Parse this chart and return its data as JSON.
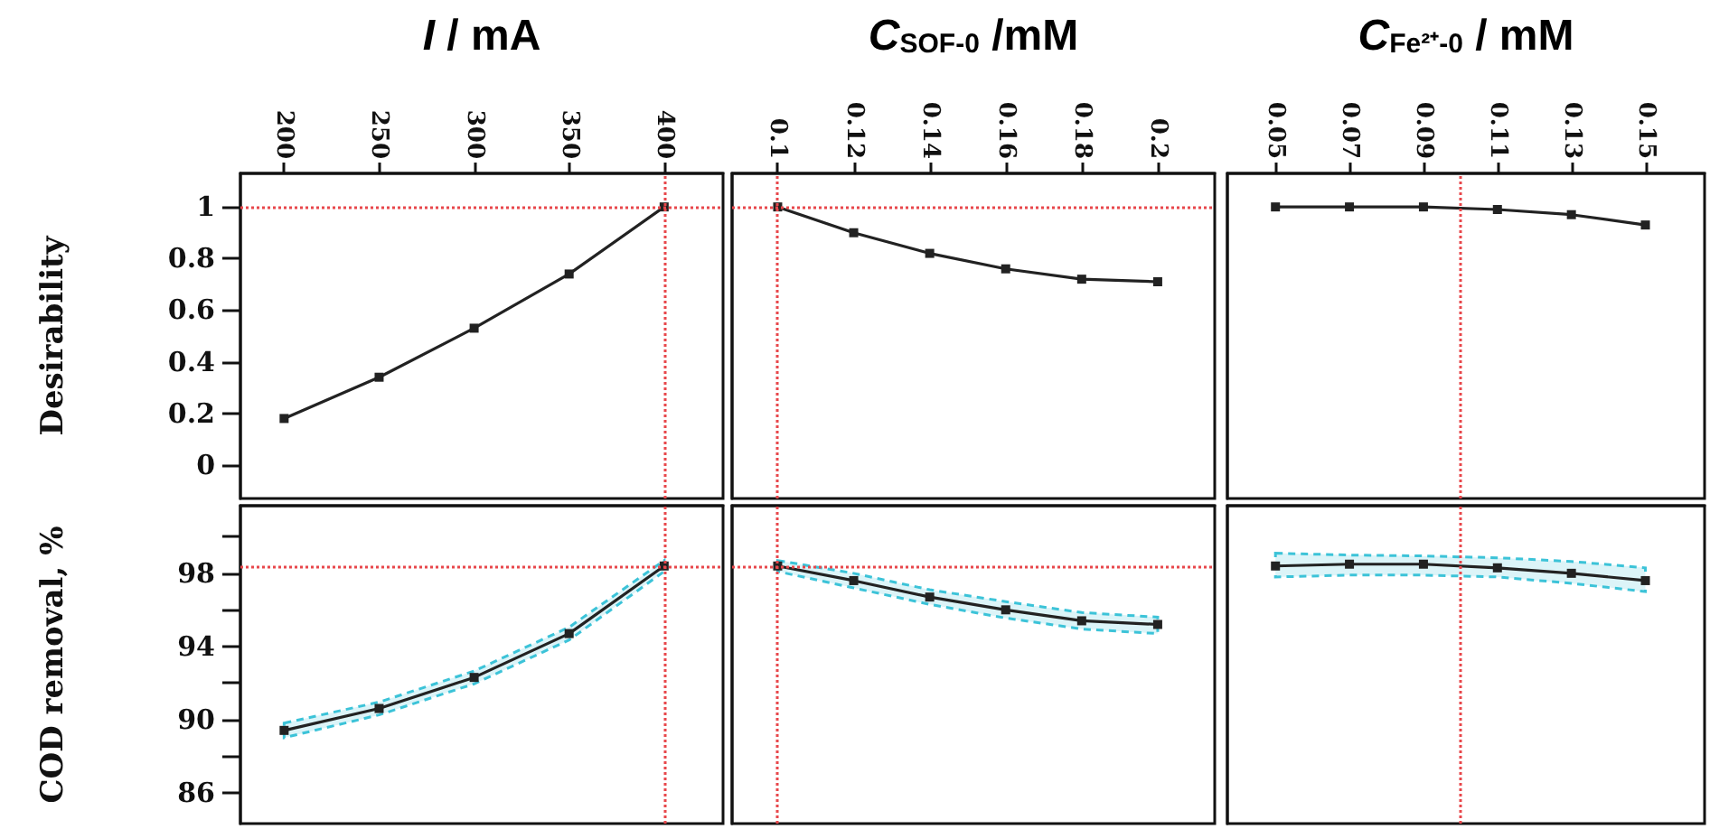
{
  "chart_data": [
    {
      "type": "line",
      "xlabel": "I / mA",
      "ylabel": "Desirability",
      "x": [
        200,
        250,
        300,
        350,
        400
      ],
      "marker": "square",
      "series": [
        {
          "color": "#222222",
          "values": [
            0.18,
            0.34,
            0.53,
            0.74,
            1.0
          ]
        }
      ],
      "xlim": [
        177,
        431
      ],
      "xticks": [
        200,
        250,
        300,
        350,
        400
      ],
      "ylim": [
        -0.13,
        1.13
      ],
      "yticks": [
        0,
        0.2,
        0.4,
        0.6,
        0.8,
        1
      ],
      "ref_lines": [
        {
          "axis": "x",
          "value": 400,
          "color": "#e8474b",
          "line_style": "dotted"
        },
        {
          "axis": "y",
          "value": 1,
          "color": "#e8474b",
          "line_style": "dotted"
        }
      ]
    },
    {
      "type": "line",
      "xlabel": "C$_{SOF-0}$ /mM",
      "x": [
        0.1,
        0.12,
        0.14,
        0.16,
        0.18,
        0.2
      ],
      "marker": "square",
      "series": [
        {
          "color": "#222222",
          "values": [
            1.0,
            0.9,
            0.82,
            0.76,
            0.72,
            0.71
          ]
        }
      ],
      "xlim": [
        0.088,
        0.215
      ],
      "xticks": [
        0.1,
        0.12,
        0.14,
        0.16,
        0.18,
        0.2
      ],
      "ylim": [
        -0.13,
        1.13
      ],
      "tick_labels": "x",
      "ref_lines": [
        {
          "axis": "x",
          "value": 0.1,
          "color": "#e8474b",
          "line_style": "dotted"
        },
        {
          "axis": "y",
          "value": 1,
          "color": "#e8474b",
          "line_style": "dotted"
        }
      ]
    },
    {
      "type": "line",
      "xlabel": "C$_{Fe²⁺-0}$ / mM",
      "x": [
        0.05,
        0.07,
        0.09,
        0.11,
        0.13,
        0.15
      ],
      "marker": "square",
      "series": [
        {
          "color": "#222222",
          "values": [
            1.0,
            1.0,
            1.0,
            0.99,
            0.97,
            0.93
          ]
        }
      ],
      "xlim": [
        0.037,
        0.166
      ],
      "xticks": [
        0.05,
        0.07,
        0.09,
        0.11,
        0.13,
        0.15
      ],
      "ylim": [
        -0.13,
        1.13
      ],
      "tick_labels": "x",
      "ref_lines": [
        {
          "axis": "x",
          "value": 0.1,
          "color": "#e8474b",
          "line_style": "dotted"
        }
      ]
    },
    {
      "type": "line",
      "ylabel": "COD removal, %",
      "x": [
        200,
        250,
        300,
        350,
        400
      ],
      "marker": "square",
      "series": [
        {
          "color": "#222222",
          "values": [
            89.4,
            90.6,
            92.3,
            94.7,
            98.4
          ],
          "lower": [
            89.0,
            90.25,
            91.95,
            94.35,
            98.1
          ],
          "upper": [
            89.8,
            90.95,
            92.65,
            95.05,
            98.7
          ]
        }
      ],
      "xlim": [
        177,
        431
      ],
      "ylim": [
        84.3,
        101.7
      ],
      "yticks": [
        86,
        {
          "value": 88,
          "label": null
        },
        90,
        {
          "value": 92,
          "label": null
        },
        94,
        {
          "value": 96,
          "label": null
        },
        98,
        {
          "value": 100,
          "label": null
        }
      ],
      "tick_labels": "y",
      "ref_lines": [
        {
          "axis": "x",
          "value": 400,
          "color": "#e8474b",
          "line_style": "dotted"
        },
        {
          "axis": "y",
          "value": 98.4,
          "color": "#e8474b",
          "line_style": "dotted"
        }
      ]
    },
    {
      "type": "line",
      "x": [
        0.1,
        0.12,
        0.14,
        0.16,
        0.18,
        0.2
      ],
      "marker": "square",
      "series": [
        {
          "color": "#222222",
          "values": [
            98.4,
            97.6,
            96.7,
            96.0,
            95.4,
            95.2
          ],
          "lower": [
            98.1,
            97.2,
            96.3,
            95.55,
            94.95,
            94.7
          ],
          "upper": [
            98.7,
            98.0,
            97.1,
            96.45,
            95.85,
            95.6
          ]
        }
      ],
      "xlim": [
        0.088,
        0.215
      ],
      "ylim": [
        84.3,
        101.7
      ],
      "tick_labels": false,
      "ref_lines": [
        {
          "axis": "x",
          "value": 0.1,
          "color": "#e8474b",
          "line_style": "dotted"
        },
        {
          "axis": "y",
          "value": 98.4,
          "color": "#e8474b",
          "line_style": "dotted"
        }
      ]
    },
    {
      "type": "line",
      "x": [
        0.05,
        0.07,
        0.09,
        0.11,
        0.13,
        0.15
      ],
      "marker": "square",
      "series": [
        {
          "color": "#222222",
          "values": [
            98.4,
            98.5,
            98.5,
            98.3,
            98.0,
            97.6
          ],
          "lower": [
            97.8,
            97.9,
            97.9,
            97.8,
            97.45,
            97.0
          ],
          "upper": [
            99.1,
            99.0,
            98.95,
            98.85,
            98.65,
            98.3
          ]
        }
      ],
      "xlim": [
        0.037,
        0.166
      ],
      "ylim": [
        84.3,
        101.7
      ],
      "tick_labels": false,
      "ref_lines": [
        {
          "axis": "x",
          "value": 0.1,
          "color": "#e8474b",
          "line_style": "dotted"
        }
      ]
    }
  ]
}
